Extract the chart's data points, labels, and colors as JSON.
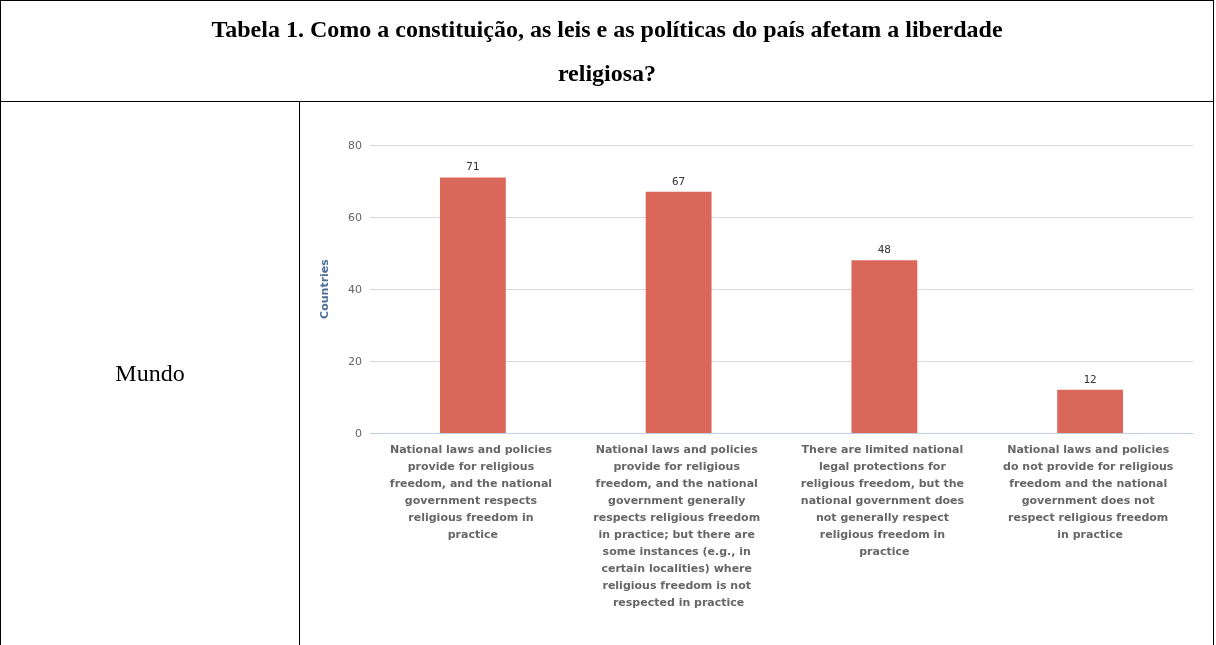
{
  "chart_data": {
    "type": "bar",
    "title": "Tabela 1. Como a constituição, as leis e as políticas do país afetam a liberdade religiosa?",
    "annotations": [
      "Mundo"
    ],
    "ylabel": "Countries",
    "categories": [
      "National laws and policies provide for religious freedom, and the national government respects religious freedom in practice",
      "National laws and policies provide for religious freedom, and the national government generally respects religious freedom in practice; but there are some instances (e.g., in certain localities) where religious freedom is not respected in practice",
      "There are limited national legal protections for religious freedom, but the national government does not generally respect religious freedom in practice",
      "National laws and policies do not provide for religious freedom and the national government does not respect religious freedom in practice"
    ],
    "values": [
      71,
      67,
      48,
      12
    ],
    "color": "#d9685a",
    "ylim": [
      0,
      80
    ],
    "yticks": [
      0,
      20,
      40,
      60,
      80
    ],
    "grid": "y",
    "data_labels": true
  }
}
